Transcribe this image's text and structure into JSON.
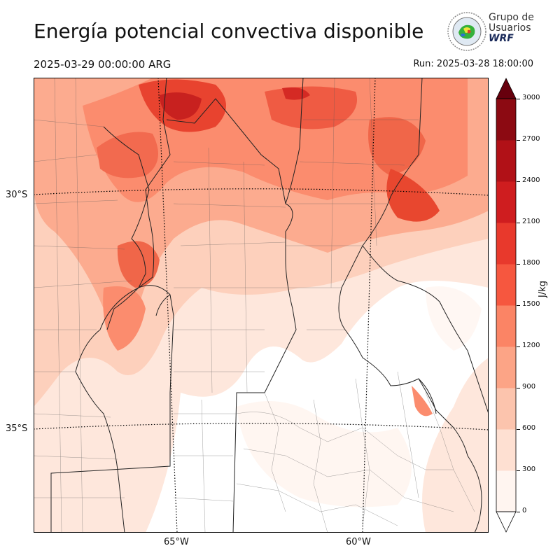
{
  "header": {
    "title": "Energía potencial convectiva disponible",
    "valid_time": "2025-03-29 00:00:00 ARG",
    "run_time": "Run: 2025-03-28 18:00:00"
  },
  "logo": {
    "line1": "Grupo de",
    "line2": "Usuarios",
    "brand": "WRF",
    "icon": "globe-emblem-icon"
  },
  "map": {
    "lat_labels": [
      "30°S",
      "35°S"
    ],
    "lon_labels": [
      "65°W",
      "60°W"
    ],
    "field": "CAPE",
    "gridlines": "dotted"
  },
  "colorbar": {
    "unit": "J/kg",
    "ticks": [
      "0",
      "300",
      "600",
      "900",
      "1200",
      "1500",
      "1800",
      "2100",
      "2400",
      "2700",
      "3000"
    ],
    "colors": [
      "#fff5f0",
      "#fee0d2",
      "#fcc4ad",
      "#fca486",
      "#fb8465",
      "#f6573f",
      "#e8392c",
      "#cf1d1f",
      "#b11117",
      "#8c0a12",
      "#67000d"
    ]
  }
}
